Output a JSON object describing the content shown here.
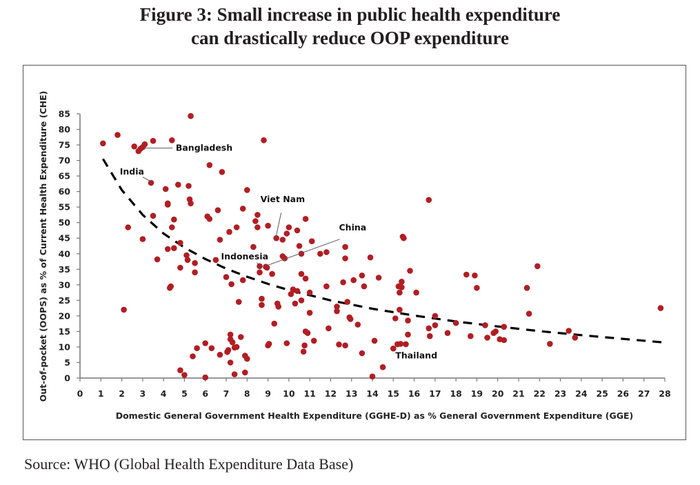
{
  "figure": {
    "title_line1": "Figure 3: Small increase in public health expenditure",
    "title_line2": "can drastically reduce OOP expenditure",
    "source": "Source: WHO (Global Health Expenditure Data Base)"
  },
  "chart_data": {
    "type": "scatter",
    "title": "Figure 3: Small increase in public health expenditure can drastically reduce OOP expenditure",
    "xlabel": "Domestic General Government Health Expenditure (GGHE-D) as % General Government Expenditure (GGE)",
    "ylabel": "Out-of-pocket (OOPS) as % of Current Health Expenditure (CHE)",
    "xlim": [
      0,
      28
    ],
    "ylim": [
      0,
      85
    ],
    "xticks": [
      "0",
      "1",
      "2",
      "3",
      "4",
      "5",
      "6",
      "7",
      "8",
      "9",
      "10",
      "11",
      "12",
      "13",
      "14",
      "15",
      "16",
      "17",
      "18",
      "19",
      "20",
      "21",
      "22",
      "23",
      "24",
      "25",
      "26",
      "27",
      "28"
    ],
    "yticks": [
      "0",
      "5",
      "10",
      "15",
      "20",
      "25",
      "30",
      "35",
      "40",
      "45",
      "50",
      "55",
      "60",
      "65",
      "70",
      "75",
      "80",
      "85"
    ],
    "grid": false,
    "marker_color": "#b01e23",
    "trendline": {
      "style": "dashed",
      "color": "#000000",
      "x": [
        1.1,
        2,
        3,
        4,
        5,
        6,
        7,
        8,
        9,
        10,
        12,
        14,
        16,
        18,
        20,
        22,
        24,
        26,
        27.9
      ],
      "y": [
        70.5,
        60.5,
        52.5,
        46.5,
        42,
        38.3,
        35.2,
        32.6,
        30.3,
        28.3,
        25,
        22.3,
        20.1,
        18.2,
        16.6,
        15.1,
        13.8,
        12.6,
        11.5
      ]
    },
    "annotations": [
      {
        "label": "Bangladesh",
        "x": 3.0,
        "y": 74
      },
      {
        "label": "India",
        "x": 3.4,
        "y": 63
      },
      {
        "label": "Viet Nam",
        "x": 9.3,
        "y": 45
      },
      {
        "label": "China",
        "x": 8.8,
        "y": 36
      },
      {
        "label": "Indonesia",
        "x": 8.6,
        "y": 35.5
      },
      {
        "label": "Thailand",
        "x": 15.1,
        "y": 11
      }
    ],
    "points": [
      [
        1.1,
        75.5
      ],
      [
        1.8,
        78.2
      ],
      [
        2.1,
        22
      ],
      [
        2.3,
        48.5
      ],
      [
        2.6,
        74.5
      ],
      [
        2.8,
        73
      ],
      [
        2.9,
        73.8
      ],
      [
        3.0,
        74.3
      ],
      [
        3.1,
        75.2
      ],
      [
        3.0,
        44.7
      ],
      [
        3.4,
        62.8
      ],
      [
        3.5,
        76.3
      ],
      [
        3.5,
        52.2
      ],
      [
        3.7,
        38.2
      ],
      [
        4.1,
        60.8
      ],
      [
        4.2,
        56.2
      ],
      [
        4.2,
        55.8
      ],
      [
        4.2,
        41.5
      ],
      [
        4.3,
        29
      ],
      [
        4.35,
        29.5
      ],
      [
        4.4,
        48.5
      ],
      [
        4.4,
        76.5
      ],
      [
        4.5,
        41.8
      ],
      [
        4.5,
        51
      ],
      [
        4.7,
        62.2
      ],
      [
        4.8,
        43.5
      ],
      [
        4.8,
        35.5
      ],
      [
        4.8,
        2.5
      ],
      [
        5.0,
        1
      ],
      [
        5.1,
        39.5
      ],
      [
        5.15,
        38
      ],
      [
        5.2,
        61.8
      ],
      [
        5.25,
        57.5
      ],
      [
        5.3,
        56.2
      ],
      [
        5.3,
        84.3
      ],
      [
        5.4,
        7
      ],
      [
        5.5,
        37
      ],
      [
        5.5,
        34
      ],
      [
        5.6,
        9.6
      ],
      [
        6.0,
        11.2
      ],
      [
        6.0,
        0.2
      ],
      [
        6.1,
        52
      ],
      [
        6.2,
        51.2
      ],
      [
        6.2,
        68.5
      ],
      [
        6.3,
        9.6
      ],
      [
        6.5,
        38
      ],
      [
        6.6,
        54
      ],
      [
        6.7,
        44.5
      ],
      [
        6.7,
        7.5
      ],
      [
        6.8,
        66.3
      ],
      [
        7.0,
        32.5
      ],
      [
        7.05,
        8.4
      ],
      [
        7.1,
        9
      ],
      [
        7.15,
        47
      ],
      [
        7.2,
        14
      ],
      [
        7.2,
        12.5
      ],
      [
        7.2,
        5
      ],
      [
        7.25,
        30.2
      ],
      [
        7.3,
        11.5
      ],
      [
        7.4,
        9.8
      ],
      [
        7.4,
        1.2
      ],
      [
        7.5,
        10
      ],
      [
        7.5,
        48.5
      ],
      [
        7.6,
        24.5
      ],
      [
        7.7,
        13.2
      ],
      [
        7.8,
        54.5
      ],
      [
        7.8,
        31.5
      ],
      [
        7.9,
        7.2
      ],
      [
        7.9,
        1.8
      ],
      [
        8.0,
        60.5
      ],
      [
        8.0,
        6.2
      ],
      [
        8.3,
        42.2
      ],
      [
        8.4,
        50.5
      ],
      [
        8.5,
        52.5
      ],
      [
        8.5,
        48.5
      ],
      [
        8.6,
        36
      ],
      [
        8.6,
        34
      ],
      [
        8.7,
        25.5
      ],
      [
        8.7,
        23.5
      ],
      [
        8.8,
        76.5
      ],
      [
        8.9,
        35.8
      ],
      [
        8.95,
        35.5
      ],
      [
        9.0,
        49
      ],
      [
        9.0,
        10.5
      ],
      [
        9.05,
        11
      ],
      [
        9.2,
        33.5
      ],
      [
        9.3,
        17.5
      ],
      [
        9.4,
        45
      ],
      [
        9.45,
        24
      ],
      [
        9.5,
        23
      ],
      [
        9.7,
        39.2
      ],
      [
        9.7,
        44.5
      ],
      [
        9.8,
        38.5
      ],
      [
        9.9,
        11.2
      ],
      [
        9.9,
        46.5
      ],
      [
        10.0,
        48.5
      ],
      [
        10.1,
        27
      ],
      [
        10.2,
        28.5
      ],
      [
        10.3,
        24
      ],
      [
        10.4,
        47.5
      ],
      [
        10.4,
        28
      ],
      [
        10.5,
        42.5
      ],
      [
        10.6,
        40
      ],
      [
        10.6,
        33.5
      ],
      [
        10.6,
        25
      ],
      [
        10.7,
        8.5
      ],
      [
        10.75,
        10.5
      ],
      [
        10.8,
        51.2
      ],
      [
        10.8,
        32
      ],
      [
        10.8,
        15
      ],
      [
        10.9,
        14.5
      ],
      [
        11.0,
        27.5
      ],
      [
        11.0,
        21
      ],
      [
        11.1,
        44
      ],
      [
        11.2,
        12
      ],
      [
        11.5,
        40
      ],
      [
        11.8,
        29.5
      ],
      [
        11.8,
        40.5
      ],
      [
        11.9,
        16
      ],
      [
        12.3,
        23
      ],
      [
        12.3,
        21.5
      ],
      [
        12.4,
        10.8
      ],
      [
        12.6,
        30.8
      ],
      [
        12.7,
        10.5
      ],
      [
        12.7,
        42.2
      ],
      [
        12.7,
        38.5
      ],
      [
        12.8,
        24.5
      ],
      [
        12.9,
        19.5
      ],
      [
        12.95,
        19
      ],
      [
        13.1,
        31.5
      ],
      [
        13.3,
        17.2
      ],
      [
        13.5,
        8
      ],
      [
        13.5,
        33
      ],
      [
        13.6,
        29.5
      ],
      [
        13.9,
        38.8
      ],
      [
        14.0,
        0.5
      ],
      [
        14.1,
        12
      ],
      [
        14.3,
        32.3
      ],
      [
        14.5,
        3.5
      ],
      [
        15.0,
        9.5
      ],
      [
        15.1,
        19.2
      ],
      [
        15.2,
        10.9
      ],
      [
        15.25,
        29.5
      ],
      [
        15.3,
        27.5
      ],
      [
        15.3,
        22
      ],
      [
        15.35,
        11
      ],
      [
        15.4,
        31
      ],
      [
        15.4,
        29.2
      ],
      [
        15.45,
        45.5
      ],
      [
        15.5,
        45
      ],
      [
        15.6,
        10.9
      ],
      [
        15.7,
        18.5
      ],
      [
        15.7,
        14
      ],
      [
        15.8,
        34.5
      ],
      [
        16.1,
        27.5
      ],
      [
        16.7,
        57.3
      ],
      [
        16.7,
        16
      ],
      [
        16.75,
        13.5
      ],
      [
        17.0,
        17
      ],
      [
        17.0,
        20
      ],
      [
        17.6,
        14.5
      ],
      [
        18.0,
        17.7
      ],
      [
        18.5,
        33.3
      ],
      [
        18.7,
        13.5
      ],
      [
        18.9,
        33
      ],
      [
        19.0,
        29
      ],
      [
        19.4,
        17
      ],
      [
        19.5,
        13
      ],
      [
        19.8,
        14.5
      ],
      [
        19.9,
        15
      ],
      [
        20.1,
        12.5
      ],
      [
        20.3,
        16.5
      ],
      [
        20.3,
        12.2
      ],
      [
        21.4,
        29
      ],
      [
        21.5,
        20.7
      ],
      [
        21.9,
        36
      ],
      [
        22.5,
        11
      ],
      [
        23.4,
        15.2
      ],
      [
        23.7,
        13
      ],
      [
        27.8,
        22.5
      ]
    ]
  }
}
